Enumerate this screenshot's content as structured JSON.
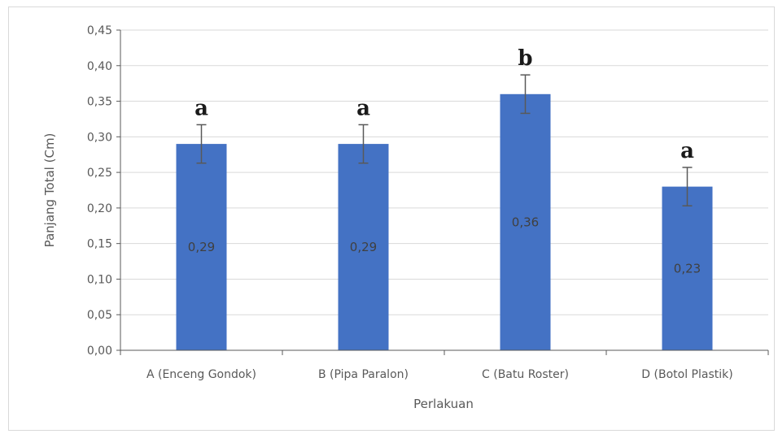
{
  "chart_data": {
    "type": "bar",
    "categories": [
      "A (Enceng Gondok)",
      "B (Pipa Paralon)",
      "C (Batu Roster)",
      "D (Botol Plastik)"
    ],
    "values": [
      0.29,
      0.29,
      0.36,
      0.23
    ],
    "data_labels": [
      "0,29",
      "0,29",
      "0,36",
      "0,23"
    ],
    "error": [
      0.027,
      0.027,
      0.027,
      0.027
    ],
    "significance_letters": [
      "a",
      "a",
      "b",
      "a"
    ],
    "title": "",
    "xlabel": "Perlakuan",
    "ylabel": "Panjang Total (Cm)",
    "ylim": [
      0,
      0.45
    ],
    "yticks": [
      0,
      0.05,
      0.1,
      0.15,
      0.2,
      0.25,
      0.3,
      0.35,
      0.4,
      0.45
    ],
    "ytick_labels": [
      "0,00",
      "0,05",
      "0,10",
      "0,15",
      "0,20",
      "0,25",
      "0,30",
      "0,35",
      "0,40",
      "0,45"
    ],
    "grid": true,
    "bar_color": "#4472c4",
    "grid_color": "#d9d9d9",
    "error_color": "#595959"
  }
}
